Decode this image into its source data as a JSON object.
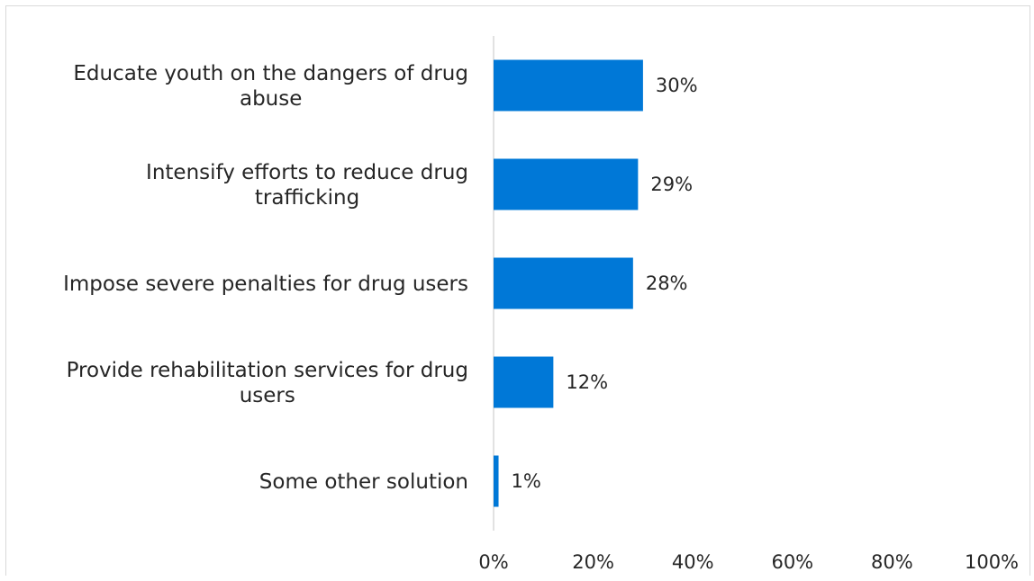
{
  "chart_data": {
    "type": "bar",
    "orientation": "horizontal",
    "categories": [
      [
        "Educate youth on the dangers of drug",
        "abuse"
      ],
      [
        "Intensify efforts to reduce drug",
        "trafficking"
      ],
      [
        "Impose severe penalties for drug users"
      ],
      [
        "Provide rehabilitation services for drug",
        "users"
      ],
      [
        "Some other solution"
      ]
    ],
    "values": [
      30,
      29,
      28,
      12,
      1
    ],
    "value_labels": [
      "30%",
      "29%",
      "28%",
      "12%",
      "1%"
    ],
    "xlim": [
      0,
      100
    ],
    "x_ticks": [
      0,
      20,
      40,
      60,
      80,
      100
    ],
    "x_tick_labels": [
      "0%",
      "20%",
      "40%",
      "60%",
      "80%",
      "100%"
    ],
    "title": "",
    "xlabel": "",
    "ylabel": "",
    "grid": false,
    "bar_color": "#0078d7",
    "axis_color": "#d9d9d9"
  }
}
